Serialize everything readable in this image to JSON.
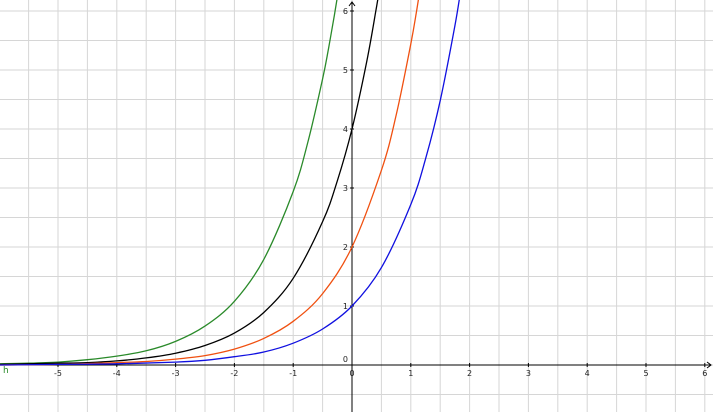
{
  "chart_data": {
    "type": "line",
    "xlim": [
      -6,
      6.1
    ],
    "ylim": [
      -0.8,
      6.2
    ],
    "grid": true,
    "x_ticks": [
      -5,
      -4,
      -3,
      -2,
      -1,
      0,
      1,
      2,
      3,
      4,
      5,
      6
    ],
    "y_ticks": [
      0,
      1,
      2,
      3,
      4,
      5,
      6
    ],
    "x_tick_labels": [
      "-5",
      "-4",
      "-3",
      "-2",
      "-1",
      "0",
      "1",
      "2",
      "3",
      "4",
      "5",
      "6"
    ],
    "y_tick_labels": [
      "0",
      "1",
      "2",
      "3",
      "4",
      "5",
      "6"
    ],
    "series": [
      {
        "color": "#2a8a2a",
        "x": [
          -6,
          -5.5,
          -5,
          -4.5,
          -4,
          -3.5,
          -3,
          -2.5,
          -2,
          -1.5,
          -1,
          -0.75,
          -0.5,
          -0.4,
          -0.3,
          -0.25
        ],
        "y": [
          0.02,
          0.03,
          0.05,
          0.09,
          0.15,
          0.24,
          0.4,
          0.66,
          1.08,
          1.79,
          2.94,
          3.78,
          4.85,
          5.36,
          5.93,
          6.23
        ]
      },
      {
        "color": "#000000",
        "x": [
          -6,
          -5.5,
          -5,
          -4.5,
          -4,
          -3.5,
          -3,
          -2.5,
          -2,
          -1.5,
          -1,
          -0.5,
          -0.25,
          0,
          0.25,
          0.4,
          0.45
        ],
        "y": [
          0.01,
          0.02,
          0.03,
          0.04,
          0.07,
          0.12,
          0.2,
          0.33,
          0.54,
          0.89,
          1.47,
          2.43,
          3.12,
          4.0,
          5.14,
          5.97,
          6.27
        ]
      },
      {
        "color": "#f05010",
        "x": [
          -6,
          -5,
          -4,
          -3.5,
          -3,
          -2.5,
          -2,
          -1.5,
          -1,
          -0.5,
          0,
          0.5,
          0.75,
          1,
          1.1,
          1.15
        ],
        "y": [
          0.0,
          0.01,
          0.04,
          0.06,
          0.1,
          0.16,
          0.27,
          0.45,
          0.74,
          1.21,
          2.0,
          3.3,
          4.23,
          5.44,
          6.01,
          6.32
        ]
      },
      {
        "color": "#1010e0",
        "x": [
          -6,
          -5,
          -4,
          -3,
          -2.5,
          -2,
          -1.5,
          -1,
          -0.5,
          0,
          0.5,
          1,
          1.25,
          1.5,
          1.75,
          1.85
        ],
        "y": [
          0.0,
          0.01,
          0.02,
          0.05,
          0.08,
          0.14,
          0.22,
          0.37,
          0.61,
          1.0,
          1.65,
          2.72,
          3.49,
          4.48,
          5.75,
          6.36
        ]
      }
    ]
  },
  "corner_label": "h"
}
